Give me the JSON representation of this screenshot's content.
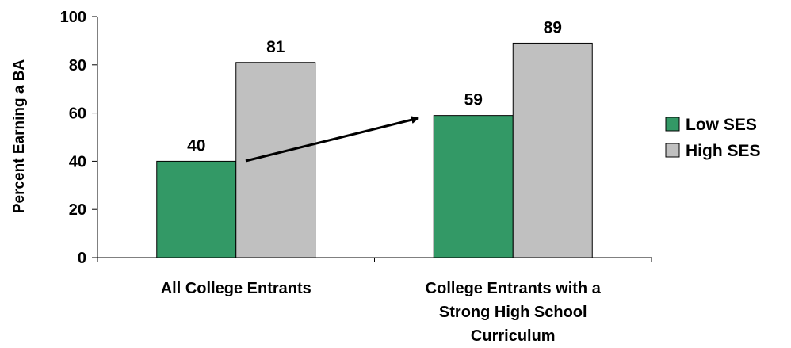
{
  "chart_data": {
    "type": "bar",
    "ylabel": "Percent Earning a BA",
    "ylim": [
      0,
      100
    ],
    "yticks": [
      "0",
      "20",
      "40",
      "60",
      "80",
      "100"
    ],
    "categories": [
      [
        "All College Entrants"
      ],
      [
        "College Entrants with a",
        "Strong High School",
        "Curriculum"
      ]
    ],
    "series": [
      {
        "name": "Low SES",
        "values": [
          40,
          59
        ],
        "color": "#339966"
      },
      {
        "name": "High SES",
        "values": [
          81,
          89
        ],
        "color": "#c0c0c0"
      }
    ],
    "legend": "right",
    "grid": false,
    "annotation": {
      "type": "arrow",
      "from": "Low SES: All College Entrants",
      "to": "Low SES: College Entrants with a Strong High School Curriculum"
    }
  }
}
